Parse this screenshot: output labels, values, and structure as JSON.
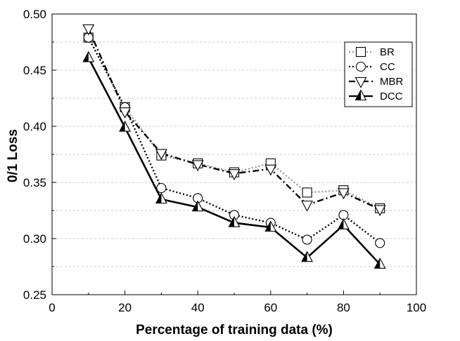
{
  "chart_data": {
    "type": "line",
    "title": "",
    "xlabel": "Percentage of training data (%)",
    "ylabel": "0/1  Loss",
    "xlim": [
      0,
      100
    ],
    "ylim": [
      0.25,
      0.5
    ],
    "x_ticks": [
      0,
      20,
      40,
      60,
      80,
      100
    ],
    "y_ticks": [
      0.25,
      0.3,
      0.35,
      0.4,
      0.45,
      0.5
    ],
    "x_tick_labels": [
      "0",
      "20",
      "40",
      "60",
      "80",
      "100"
    ],
    "y_tick_labels": [
      "0.25",
      "0.30",
      "0.35",
      "0.40",
      "0.45",
      "0.50"
    ],
    "grid": "horizontal dotted",
    "legend_position": "top-right",
    "x": [
      10,
      20,
      30,
      40,
      50,
      60,
      70,
      80,
      90
    ],
    "series": [
      {
        "name": "BR",
        "marker": "square",
        "line": "dotted-light",
        "values": [
          0.479,
          0.417,
          0.374,
          0.367,
          0.359,
          0.367,
          0.341,
          0.343,
          0.327
        ]
      },
      {
        "name": "CC",
        "marker": "circle",
        "line": "dotted",
        "values": [
          0.479,
          0.417,
          0.345,
          0.336,
          0.321,
          0.314,
          0.299,
          0.321,
          0.296
        ]
      },
      {
        "name": "MBR",
        "marker": "triangle-down",
        "line": "dash-dot",
        "values": [
          0.487,
          0.413,
          0.376,
          0.366,
          0.358,
          0.362,
          0.33,
          0.341,
          0.326
        ]
      },
      {
        "name": "DCC",
        "marker": "triangle-up",
        "line": "solid",
        "values": [
          0.461,
          0.399,
          0.335,
          0.328,
          0.314,
          0.31,
          0.283,
          0.312,
          0.277
        ]
      }
    ]
  }
}
